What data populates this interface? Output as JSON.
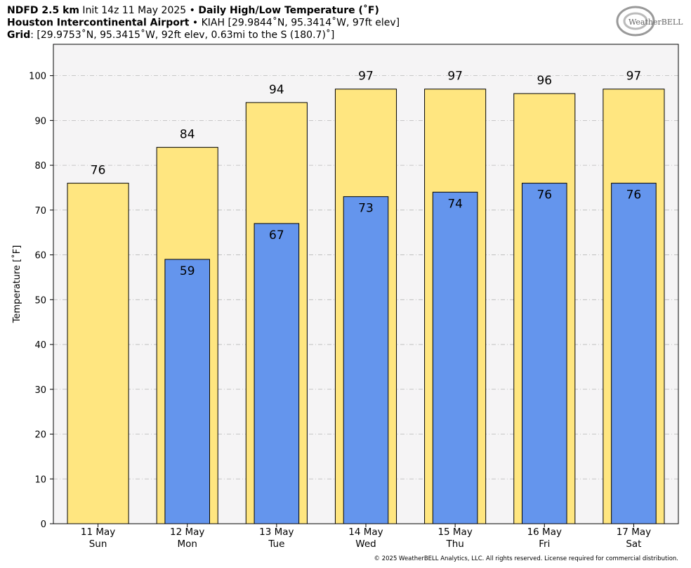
{
  "chart_data": {
    "type": "bar",
    "title_lines": [
      [
        {
          "text": "NDFD 2.5 km",
          "bold": true
        },
        {
          "text": " Init 14z 11 May 2025 • ",
          "bold": false
        },
        {
          "text": "Daily High/Low Temperature (˚F)",
          "bold": true
        }
      ],
      [
        {
          "text": "Houston Intercontinental Airport",
          "bold": true
        },
        {
          "text": " • KIAH [29.9844˚N, 95.3414˚W, 97ft elev]",
          "bold": false
        }
      ],
      [
        {
          "text": "Grid",
          "bold": true
        },
        {
          "text": ": [29.9753˚N, 95.3415˚W, 92ft elev, 0.63mi to the S (180.7)˚]",
          "bold": false
        }
      ]
    ],
    "logo": "WeatherBELL",
    "footer": "© 2025 WeatherBELL Analytics, LLC. All rights reserved. License required for commercial distribution.",
    "ylabel": "Temperature [˚F]",
    "categories": [
      "11 May",
      "12 May",
      "13 May",
      "14 May",
      "15 May",
      "16 May",
      "17 May"
    ],
    "weekdays": [
      "Sun",
      "Mon",
      "Tue",
      "Wed",
      "Thu",
      "Fri",
      "Sat"
    ],
    "series": [
      {
        "name": "High",
        "color": "#ffe680",
        "values": [
          76,
          84,
          94,
          97,
          97,
          96,
          97
        ]
      },
      {
        "name": "Low",
        "color": "#6495ed",
        "values": [
          null,
          59,
          67,
          73,
          74,
          76,
          76
        ]
      }
    ],
    "ylim": [
      0,
      107
    ],
    "yticks": [
      0,
      10,
      20,
      30,
      40,
      50,
      60,
      70,
      80,
      90,
      100
    ],
    "grid": true
  }
}
